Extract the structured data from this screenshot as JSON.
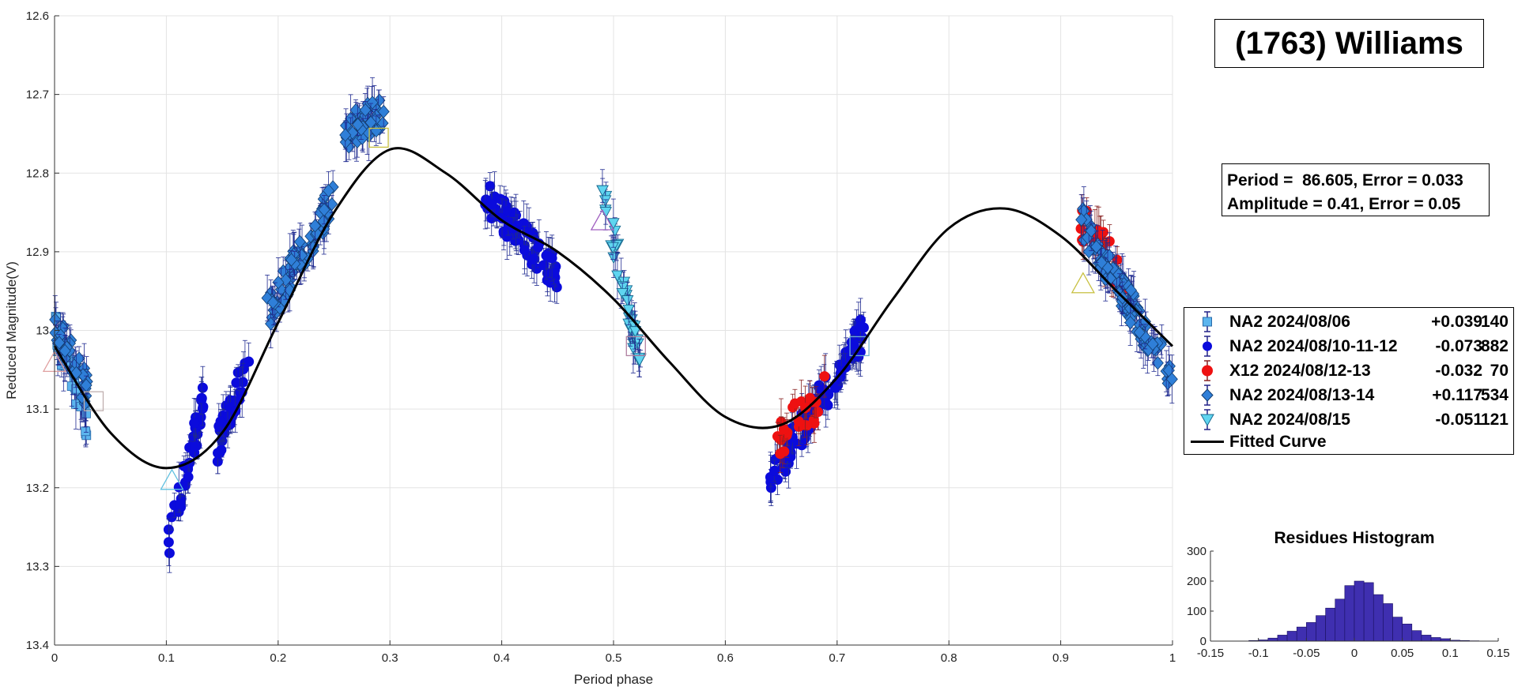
{
  "title": "(1763) Williams",
  "stats": {
    "line1": "Period =  86.605, Error = 0.033",
    "line2": "Amplitude = 0.41, Error = 0.05"
  },
  "chart_data": [
    {
      "type": "scatter",
      "xlabel": "Period phase",
      "ylabel": "Reduced Magnitude(V)",
      "xlim": [
        0,
        1
      ],
      "ylim": [
        12.6,
        13.4
      ],
      "y_reversed": true,
      "grid": true,
      "xticks": [
        "0",
        "0.1",
        "0.2",
        "0.3",
        "0.4",
        "0.5",
        "0.6",
        "0.7",
        "0.8",
        "0.9",
        "1"
      ],
      "yticks": [
        "12.6",
        "12.7",
        "12.8",
        "12.9",
        "13",
        "13.1",
        "13.2",
        "13.3",
        "13.4"
      ],
      "legend_position": "right",
      "series": [
        {
          "name": "NA2 2024/08/06",
          "offset": "+0.039",
          "count": "140",
          "marker": "square",
          "color": "#5cb5ee",
          "clusters": [
            [
              0.0,
              0.03,
              13.0,
              13.12
            ]
          ]
        },
        {
          "name": "NA2 2024/08/10-11-12",
          "offset": "-0.073",
          "count": "882",
          "marker": "circle",
          "color": "#0b0bdc",
          "clusters": [
            [
              0.102,
              0.135,
              13.27,
              13.08
            ],
            [
              0.145,
              0.175,
              13.15,
              13.03
            ],
            [
              0.385,
              0.45,
              12.83,
              12.93
            ],
            [
              0.64,
              0.725,
              13.19,
              13.0
            ]
          ]
        },
        {
          "name": "X12 2024/08/12-13",
          "offset": "-0.032",
          "count": "70",
          "marker": "circle",
          "color": "#ee1111",
          "clusters": [
            [
              0.645,
              0.69,
              13.14,
              13.08
            ],
            [
              0.918,
              0.96,
              12.86,
              12.94
            ]
          ]
        },
        {
          "name": "NA2 2024/08/13-14",
          "offset": "+0.117",
          "count": "534",
          "marker": "diamond",
          "color": "#2f7fd8",
          "clusters": [
            [
              0.0,
              0.03,
              12.99,
              13.08
            ],
            [
              0.19,
              0.25,
              12.98,
              12.83
            ],
            [
              0.26,
              0.295,
              12.75,
              12.72
            ],
            [
              0.918,
              1.0,
              12.86,
              13.06
            ]
          ]
        },
        {
          "name": "NA2 2024/08/15",
          "offset": "-0.051",
          "count": "121",
          "marker": "triangle-down",
          "color": "#5fd5f0",
          "clusters": [
            [
              0.49,
              0.525,
              12.82,
              13.05
            ]
          ]
        },
        {
          "name": "Fitted Curve",
          "offset": "",
          "count": "",
          "marker": "line",
          "color": "#000000",
          "x": [
            0.0,
            0.05,
            0.1,
            0.15,
            0.2,
            0.25,
            0.3,
            0.35,
            0.4,
            0.45,
            0.5,
            0.55,
            0.6,
            0.65,
            0.7,
            0.75,
            0.8,
            0.85,
            0.9,
            0.95,
            1.0
          ],
          "y": [
            13.02,
            13.13,
            13.175,
            13.13,
            12.99,
            12.85,
            12.77,
            12.8,
            12.86,
            12.9,
            12.96,
            13.04,
            13.11,
            13.12,
            13.06,
            12.96,
            12.87,
            12.845,
            12.88,
            12.95,
            13.02
          ]
        }
      ],
      "open_markers": [
        {
          "shape": "triangle",
          "color": "#e0a0a0",
          "x": 0.0,
          "y": 13.04
        },
        {
          "shape": "square",
          "color": "#c0b0b0",
          "x": 0.035,
          "y": 13.09
        },
        {
          "shape": "triangle",
          "color": "#60c0e0",
          "x": 0.105,
          "y": 13.19
        },
        {
          "shape": "square",
          "color": "#c8c040",
          "x": 0.29,
          "y": 12.755
        },
        {
          "shape": "triangle",
          "color": "#a060c0",
          "x": 0.49,
          "y": 12.86
        },
        {
          "shape": "square",
          "color": "#b080a0",
          "x": 0.52,
          "y": 13.02
        },
        {
          "shape": "square",
          "color": "#70b0d0",
          "x": 0.72,
          "y": 13.02
        },
        {
          "shape": "triangle",
          "color": "#c8c040",
          "x": 0.92,
          "y": 12.94
        }
      ]
    },
    {
      "type": "bar",
      "title": "Residues Histogram",
      "xlim": [
        -0.15,
        0.15
      ],
      "ylim": [
        0,
        300
      ],
      "xticks": [
        "-0.15",
        "-0.1",
        "-0.05",
        "0",
        "0.05",
        "0.1",
        "0.15"
      ],
      "yticks": [
        "0",
        "100",
        "200",
        "300"
      ],
      "bar_color": "#3f2fb0",
      "bin_width": 0.01,
      "bin_centers": [
        -0.105,
        -0.095,
        -0.085,
        -0.075,
        -0.065,
        -0.055,
        -0.045,
        -0.035,
        -0.025,
        -0.015,
        -0.005,
        0.005,
        0.015,
        0.025,
        0.035,
        0.045,
        0.055,
        0.065,
        0.075,
        0.085,
        0.095,
        0.105,
        0.115,
        0.125
      ],
      "values": [
        2,
        4,
        10,
        20,
        33,
        47,
        62,
        85,
        110,
        140,
        185,
        200,
        195,
        155,
        125,
        80,
        57,
        35,
        20,
        12,
        8,
        3,
        2,
        1
      ]
    }
  ]
}
